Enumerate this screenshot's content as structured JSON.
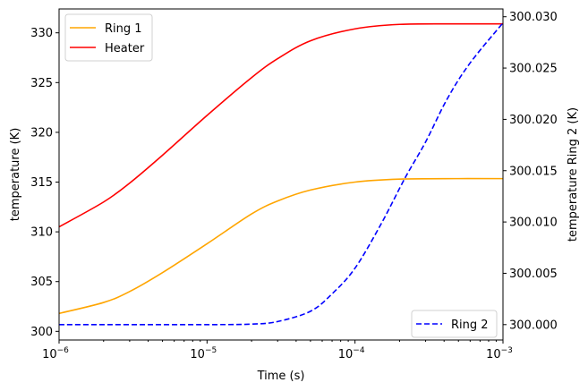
{
  "chart_data": {
    "type": "line",
    "xlabel": "Time (s)",
    "ylabel": "temperature (K)",
    "ylabel_right": "temperature Ring 2 (K)",
    "xscale": "log",
    "xlim": [
      1e-06,
      0.001
    ],
    "ylim": [
      299.13,
      332.4
    ],
    "ylim_right": [
      299.9985,
      300.03076
    ],
    "x_ticks": [
      1e-06,
      1e-05,
      0.0001,
      0.001
    ],
    "x_tick_labels": [
      {
        "base": "10",
        "exp": "−6"
      },
      {
        "base": "10",
        "exp": "−5"
      },
      {
        "base": "10",
        "exp": "−4"
      },
      {
        "base": "10",
        "exp": "−3"
      }
    ],
    "y_ticks": [
      300,
      305,
      310,
      315,
      320,
      325,
      330
    ],
    "y_tick_labels": [
      "300",
      "305",
      "310",
      "315",
      "320",
      "325",
      "330"
    ],
    "y_right_ticks": [
      300.0,
      300.005,
      300.01,
      300.015,
      300.02,
      300.025,
      300.03
    ],
    "y_right_tick_labels": [
      "300.000",
      "300.005",
      "300.010",
      "300.015",
      "300.020",
      "300.025",
      "300.030"
    ],
    "grid": false,
    "legend_left": {
      "placement": "upper-left",
      "entries": [
        "Ring 1",
        "Heater"
      ]
    },
    "legend_right": {
      "placement": "lower-right",
      "entries": [
        "Ring 2"
      ]
    },
    "series": [
      {
        "name": "Ring 1",
        "axis": "left",
        "color": "#ffa500",
        "style": "solid",
        "x": [
          1e-06,
          2e-06,
          3e-06,
          5e-06,
          1e-05,
          2e-05,
          3e-05,
          5e-05,
          0.0001,
          0.0002,
          0.0005,
          0.001
        ],
        "y": [
          301.8,
          302.9,
          304.0,
          305.9,
          308.8,
          311.8,
          313.1,
          314.2,
          315.0,
          315.3,
          315.35,
          315.35
        ]
      },
      {
        "name": "Heater",
        "axis": "left",
        "color": "#ff0000",
        "style": "solid",
        "x": [
          1e-06,
          2e-06,
          3e-06,
          5e-06,
          1e-05,
          2e-05,
          3e-05,
          5e-05,
          0.0001,
          0.0002,
          0.0005,
          0.001
        ],
        "y": [
          310.5,
          313.0,
          314.9,
          317.7,
          321.7,
          325.5,
          327.4,
          329.2,
          330.4,
          330.85,
          330.9,
          330.9
        ]
      },
      {
        "name": "Ring 2",
        "axis": "right",
        "color": "#0000ff",
        "style": "dashed",
        "x": [
          1e-06,
          1e-05,
          2e-05,
          3e-05,
          5e-05,
          7e-05,
          0.0001,
          0.00015,
          0.000218,
          0.0003,
          0.00042,
          0.0006,
          0.001
        ],
        "y": [
          300.0,
          300.0,
          300.00005,
          300.0003,
          300.0013,
          300.003,
          300.0055,
          300.0098,
          300.0143,
          300.0178,
          300.022,
          300.0255,
          300.0294
        ]
      }
    ]
  }
}
